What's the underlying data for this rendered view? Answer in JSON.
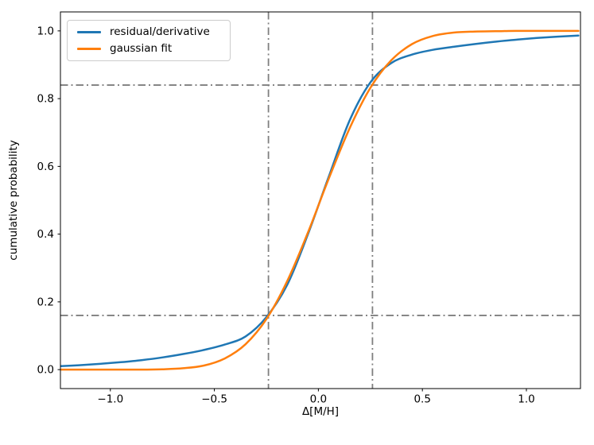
{
  "figure": {
    "background": "#ffffff",
    "frame_color": "#000000"
  },
  "chart_data": {
    "type": "line",
    "title": "",
    "xlabel": "Δ[M/H]",
    "ylabel": "cumulative probability",
    "xlim": [
      -1.24,
      1.26
    ],
    "ylim": [
      -0.056,
      1.056
    ],
    "grid": false,
    "legend": {
      "position": "upper left",
      "entries": [
        "residual/derivative",
        "gaussian fit"
      ]
    },
    "xticks": [
      {
        "v": -1.0,
        "label": "−1.0"
      },
      {
        "v": -0.5,
        "label": "−0.5"
      },
      {
        "v": 0.0,
        "label": "0.0"
      },
      {
        "v": 0.5,
        "label": "0.5"
      },
      {
        "v": 1.0,
        "label": "1.0"
      }
    ],
    "yticks": [
      {
        "v": 0.0,
        "label": "0.0"
      },
      {
        "v": 0.2,
        "label": "0.2"
      },
      {
        "v": 0.4,
        "label": "0.4"
      },
      {
        "v": 0.6,
        "label": "0.6"
      },
      {
        "v": 0.8,
        "label": "0.8"
      },
      {
        "v": 1.0,
        "label": "1.0"
      }
    ],
    "x": [
      -1.25,
      -1.15,
      -1.05,
      -0.95,
      -0.85,
      -0.75,
      -0.65,
      -0.55,
      -0.45,
      -0.35,
      -0.25,
      -0.15,
      -0.05,
      0.05,
      0.15,
      0.25,
      0.35,
      0.45,
      0.55,
      0.65,
      0.75,
      0.85,
      0.95,
      1.05,
      1.15,
      1.25
    ],
    "series": [
      {
        "name": "residual/derivative",
        "color": "#1f77b4",
        "values": [
          0.01,
          0.013,
          0.017,
          0.022,
          0.028,
          0.036,
          0.046,
          0.058,
          0.074,
          0.098,
          0.155,
          0.25,
          0.4,
          0.57,
          0.735,
          0.848,
          0.905,
          0.93,
          0.944,
          0.953,
          0.961,
          0.968,
          0.974,
          0.979,
          0.983,
          0.986
        ]
      },
      {
        "name": "gaussian fit",
        "color": "#ff7f0e",
        "values": [
          0.0,
          0.0,
          0.0,
          0.0,
          0.0,
          0.001,
          0.004,
          0.012,
          0.033,
          0.075,
          0.149,
          0.261,
          0.405,
          0.564,
          0.712,
          0.832,
          0.913,
          0.961,
          0.985,
          0.995,
          0.998,
          0.999,
          1.0,
          1.0,
          1.0,
          1.0
        ]
      }
    ],
    "reference_lines": {
      "color": "#7f7f7f",
      "style": "dash-dot",
      "vertical_x": [
        -0.24,
        0.26
      ],
      "horizontal_y": [
        0.16,
        0.84
      ]
    }
  }
}
